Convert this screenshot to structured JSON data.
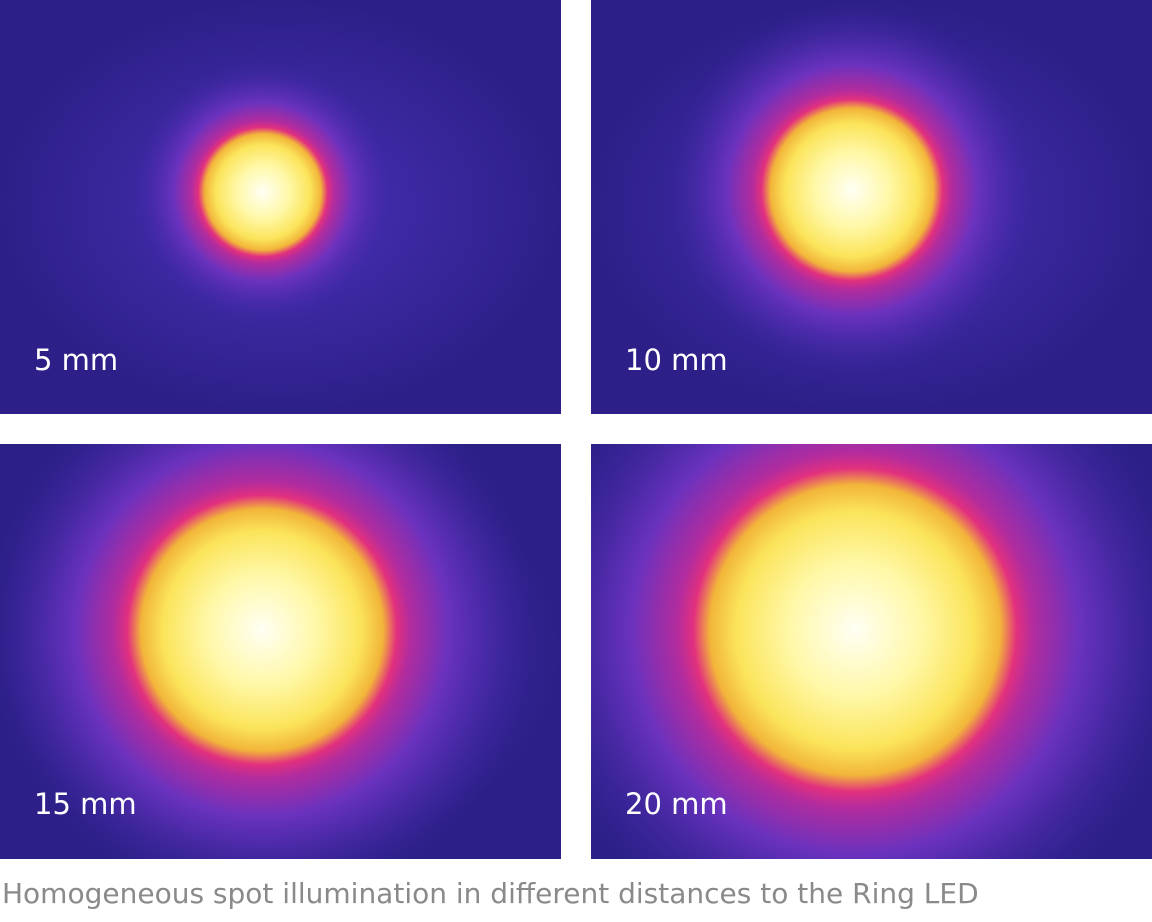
{
  "panels": [
    {
      "label": "5 mm"
    },
    {
      "label": "10 mm"
    },
    {
      "label": "15 mm"
    },
    {
      "label": "20 mm"
    }
  ],
  "caption": "Homogeneous spot illumination in different distances to the Ring LED"
}
